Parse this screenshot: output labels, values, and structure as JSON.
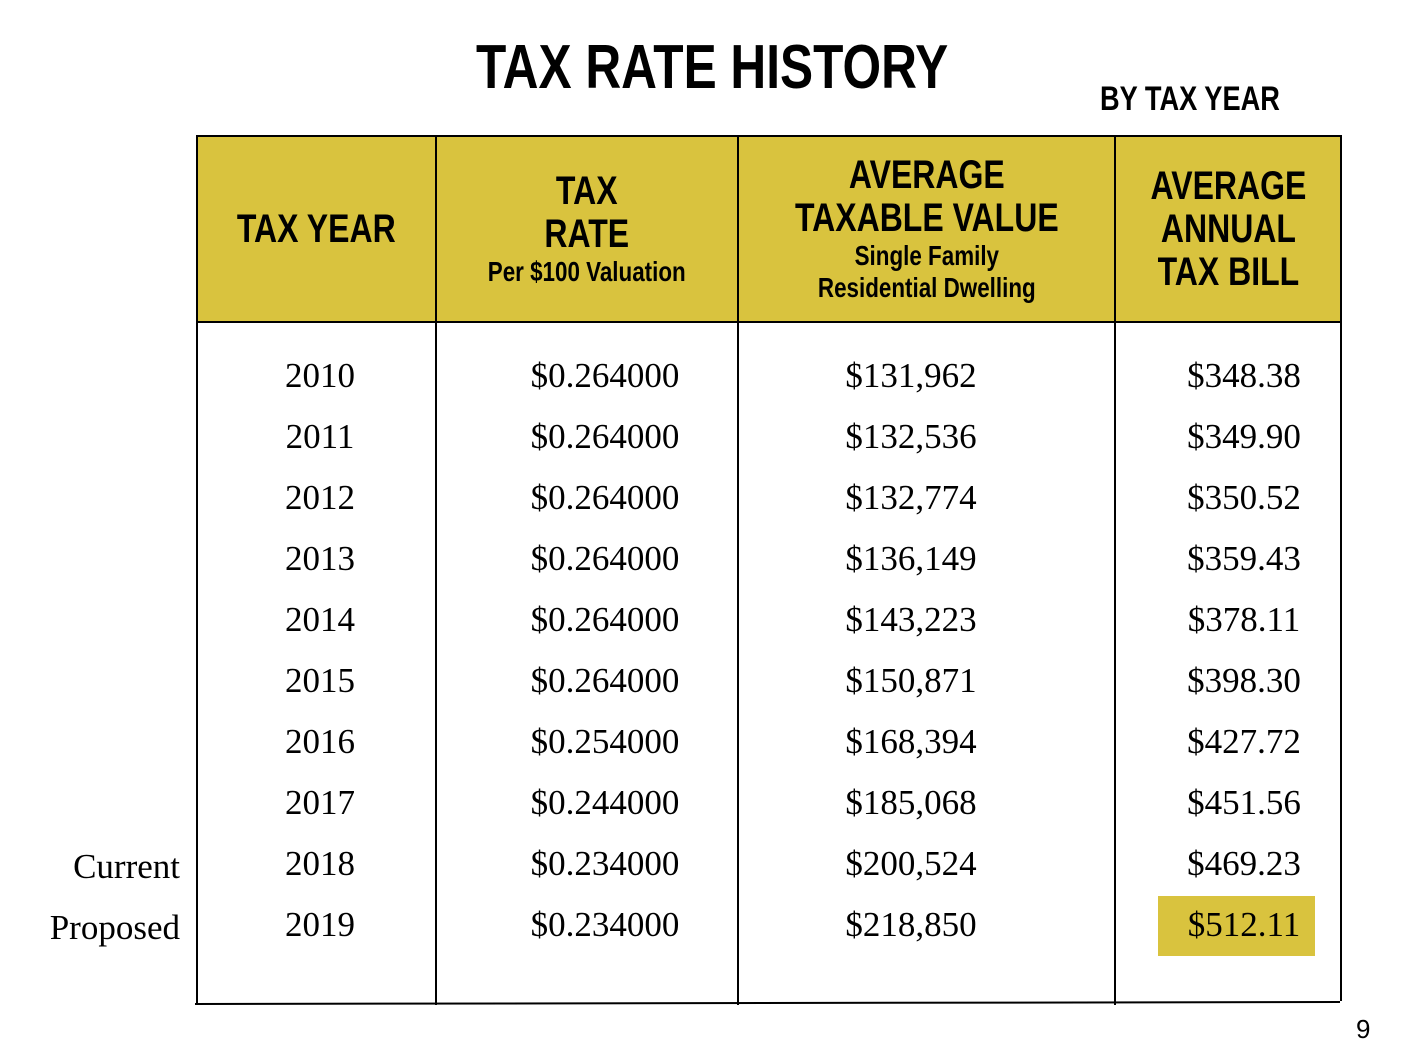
{
  "header": {
    "title": "TAX RATE HISTORY",
    "subtitle": "BY TAX YEAR"
  },
  "table": {
    "columns": [
      {
        "title": [
          "TAX YEAR"
        ]
      },
      {
        "title": [
          "TAX",
          "RATE"
        ],
        "subtitle": [
          "Per $100 Valuation"
        ]
      },
      {
        "title": [
          "AVERAGE",
          "TAXABLE VALUE"
        ],
        "subtitle": [
          "Single Family",
          "Residential Dwelling"
        ]
      },
      {
        "title": [
          "AVERAGE",
          "ANNUAL",
          "TAX BILL"
        ]
      }
    ],
    "rows": [
      [
        "2010",
        "$0.264000",
        "$131,962",
        "$348.38"
      ],
      [
        "2011",
        "$0.264000",
        "$132,536",
        "$349.90"
      ],
      [
        "2012",
        "$0.264000",
        "$132,774",
        "$350.52"
      ],
      [
        "2013",
        "$0.264000",
        "$136,149",
        "$359.43"
      ],
      [
        "2014",
        "$0.264000",
        "$143,223",
        "$378.11"
      ],
      [
        "2015",
        "$0.264000",
        "$150,871",
        "$398.30"
      ],
      [
        "2016",
        "$0.254000",
        "$168,394",
        "$427.72"
      ],
      [
        "2017",
        "$0.244000",
        "$185,068",
        "$451.56"
      ],
      [
        "2018",
        "$0.234000",
        "$200,524",
        "$469.23"
      ],
      [
        "2019",
        "$0.234000",
        "$218,850",
        "$512.11"
      ]
    ],
    "side_labels": [
      "Current",
      "Proposed"
    ]
  },
  "footer": {
    "page_number": "9"
  }
}
